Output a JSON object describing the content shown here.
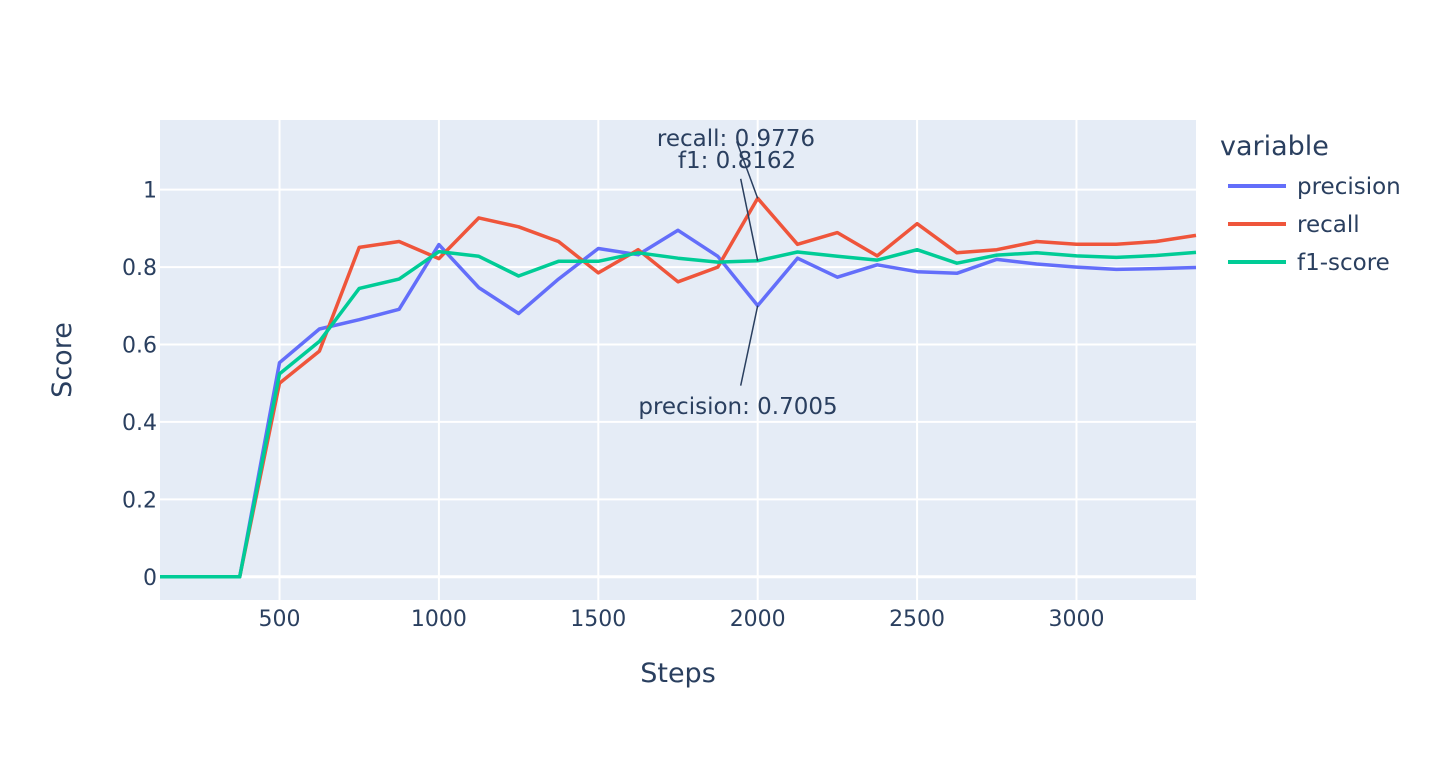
{
  "chart_data": {
    "type": "line",
    "title": "",
    "xlabel": "Steps",
    "ylabel": "Score",
    "xlim": [
      125,
      3375
    ],
    "ylim": [
      -0.06,
      1.18
    ],
    "grid": true,
    "x_ticks": [
      "500",
      "1000",
      "1500",
      "2000",
      "2500",
      "3000"
    ],
    "y_ticks": [
      "0",
      "0.2",
      "0.4",
      "0.6",
      "0.8",
      "1"
    ],
    "legend": {
      "title": "variable",
      "position": "right"
    },
    "x": [
      125,
      250,
      375,
      500,
      625,
      750,
      875,
      1000,
      1125,
      1250,
      1375,
      1500,
      1625,
      1750,
      1875,
      2000,
      2125,
      2250,
      2375,
      2500,
      2625,
      2750,
      2875,
      3000,
      3125,
      3250,
      3375
    ],
    "series": [
      {
        "name": "precision",
        "color": "#636efa",
        "values": [
          0,
          0,
          0,
          0.553,
          0.64,
          0.664,
          0.691,
          0.858,
          0.747,
          0.68,
          0.769,
          0.848,
          0.832,
          0.895,
          0.828,
          0.7005,
          0.823,
          0.774,
          0.806,
          0.788,
          0.784,
          0.82,
          0.808,
          0.8,
          0.794,
          0.796,
          0.799
        ]
      },
      {
        "name": "recall",
        "color": "#ef553b",
        "values": [
          0,
          0,
          0,
          0.5,
          0.583,
          0.851,
          0.866,
          0.822,
          0.927,
          0.904,
          0.866,
          0.785,
          0.845,
          0.762,
          0.8,
          0.9776,
          0.859,
          0.889,
          0.829,
          0.912,
          0.837,
          0.845,
          0.866,
          0.859,
          0.859,
          0.866,
          0.882
        ]
      },
      {
        "name": "f1-score",
        "color": "#00cc96",
        "values": [
          0,
          0,
          0,
          0.524,
          0.608,
          0.745,
          0.769,
          0.84,
          0.828,
          0.777,
          0.815,
          0.815,
          0.837,
          0.823,
          0.813,
          0.8162,
          0.839,
          0.828,
          0.818,
          0.845,
          0.81,
          0.831,
          0.837,
          0.829,
          0.825,
          0.83,
          0.838
        ]
      }
    ],
    "annotations": [
      {
        "text": "recall: 0.9776",
        "x": 2000,
        "y": 0.9776
      },
      {
        "text": "f1: 0.8162",
        "x": 2000,
        "y": 0.8162
      },
      {
        "text": "precision: 0.7005",
        "x": 2000,
        "y": 0.7005
      }
    ]
  }
}
